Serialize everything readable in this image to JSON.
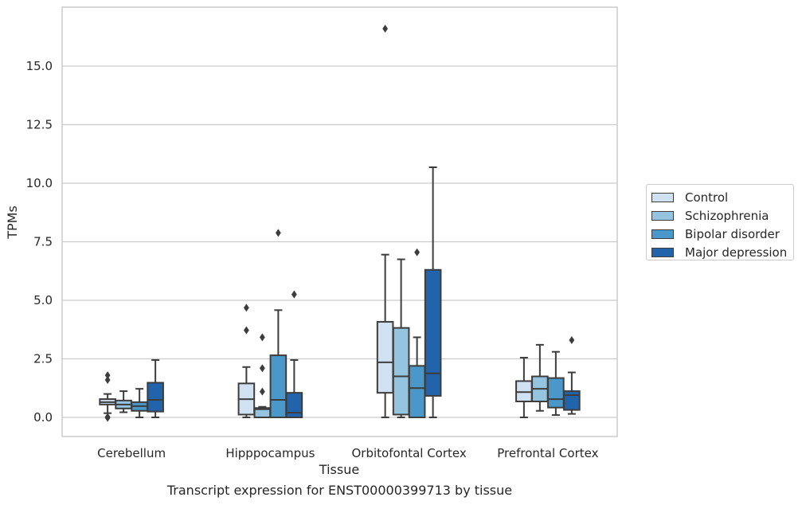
{
  "caption": "Transcript expression for ENST00000399713 by tissue",
  "chart_data": {
    "type": "box",
    "xlabel": "Tissue",
    "ylabel": "TPMs",
    "ylim": [
      -0.8,
      17.8
    ],
    "yticks": [
      0.0,
      2.5,
      5.0,
      7.5,
      10.0,
      12.5,
      15.0
    ],
    "ytick_labels": [
      "0.0",
      "2.5",
      "5.0",
      "7.5",
      "10.0",
      "12.5",
      "15.0"
    ],
    "grid": "horizontal",
    "legend_position": "right",
    "categories": [
      "Cerebellum",
      "Hipppocampus",
      "Orbitofontal Cortex",
      "Prefrontal Cortex"
    ],
    "series": [
      {
        "name": "Control",
        "color": "#d0e1f2",
        "boxes": [
          {
            "whislo": 0.18,
            "q1": 0.55,
            "med": 0.65,
            "q3": 0.78,
            "whishi": 1.0,
            "fliers": [
              1.8,
              1.6,
              0.02,
              -0.02
            ]
          },
          {
            "whislo": 0.0,
            "q1": 0.12,
            "med": 0.78,
            "q3": 1.45,
            "whishi": 2.15,
            "fliers": [
              4.68,
              3.72
            ]
          },
          {
            "whislo": 0.0,
            "q1": 1.05,
            "med": 2.35,
            "q3": 4.08,
            "whishi": 6.95,
            "fliers": [
              16.6
            ]
          },
          {
            "whislo": 0.0,
            "q1": 0.68,
            "med": 1.08,
            "q3": 1.55,
            "whishi": 2.55,
            "fliers": []
          }
        ]
      },
      {
        "name": "Schizophrenia",
        "color": "#94c4df",
        "boxes": [
          {
            "whislo": 0.22,
            "q1": 0.38,
            "med": 0.55,
            "q3": 0.72,
            "whishi": 1.12,
            "fliers": []
          },
          {
            "whislo": 0.0,
            "q1": 0.0,
            "med": 0.35,
            "q3": 0.4,
            "whishi": 0.45,
            "fliers": [
              3.42,
              2.1,
              1.1
            ]
          },
          {
            "whislo": 0.0,
            "q1": 0.12,
            "med": 1.75,
            "q3": 3.82,
            "whishi": 6.75,
            "fliers": []
          },
          {
            "whislo": 0.28,
            "q1": 0.68,
            "med": 1.22,
            "q3": 1.75,
            "whishi": 3.1,
            "fliers": []
          }
        ]
      },
      {
        "name": "Bipolar disorder",
        "color": "#4a98c9",
        "boxes": [
          {
            "whislo": 0.0,
            "q1": 0.28,
            "med": 0.48,
            "q3": 0.65,
            "whishi": 1.22,
            "fliers": []
          },
          {
            "whislo": 0.0,
            "q1": 0.0,
            "med": 0.75,
            "q3": 2.65,
            "whishi": 4.58,
            "fliers": [
              7.88
            ]
          },
          {
            "whislo": 0.0,
            "q1": 0.0,
            "med": 1.25,
            "q3": 2.2,
            "whishi": 3.42,
            "fliers": [
              7.05
            ]
          },
          {
            "whislo": 0.1,
            "q1": 0.42,
            "med": 0.78,
            "q3": 1.68,
            "whishi": 2.8,
            "fliers": []
          }
        ]
      },
      {
        "name": "Major depression",
        "color": "#2164ab",
        "boxes": [
          {
            "whislo": 0.0,
            "q1": 0.25,
            "med": 0.75,
            "q3": 1.48,
            "whishi": 2.45,
            "fliers": []
          },
          {
            "whislo": 0.0,
            "q1": 0.0,
            "med": 0.2,
            "q3": 1.05,
            "whishi": 2.45,
            "fliers": [
              5.25
            ]
          },
          {
            "whislo": 0.0,
            "q1": 0.92,
            "med": 1.88,
            "q3": 6.3,
            "whishi": 10.68,
            "fliers": []
          },
          {
            "whislo": 0.15,
            "q1": 0.32,
            "med": 0.95,
            "q3": 1.12,
            "whishi": 1.92,
            "fliers": [
              3.3
            ]
          }
        ]
      }
    ]
  }
}
